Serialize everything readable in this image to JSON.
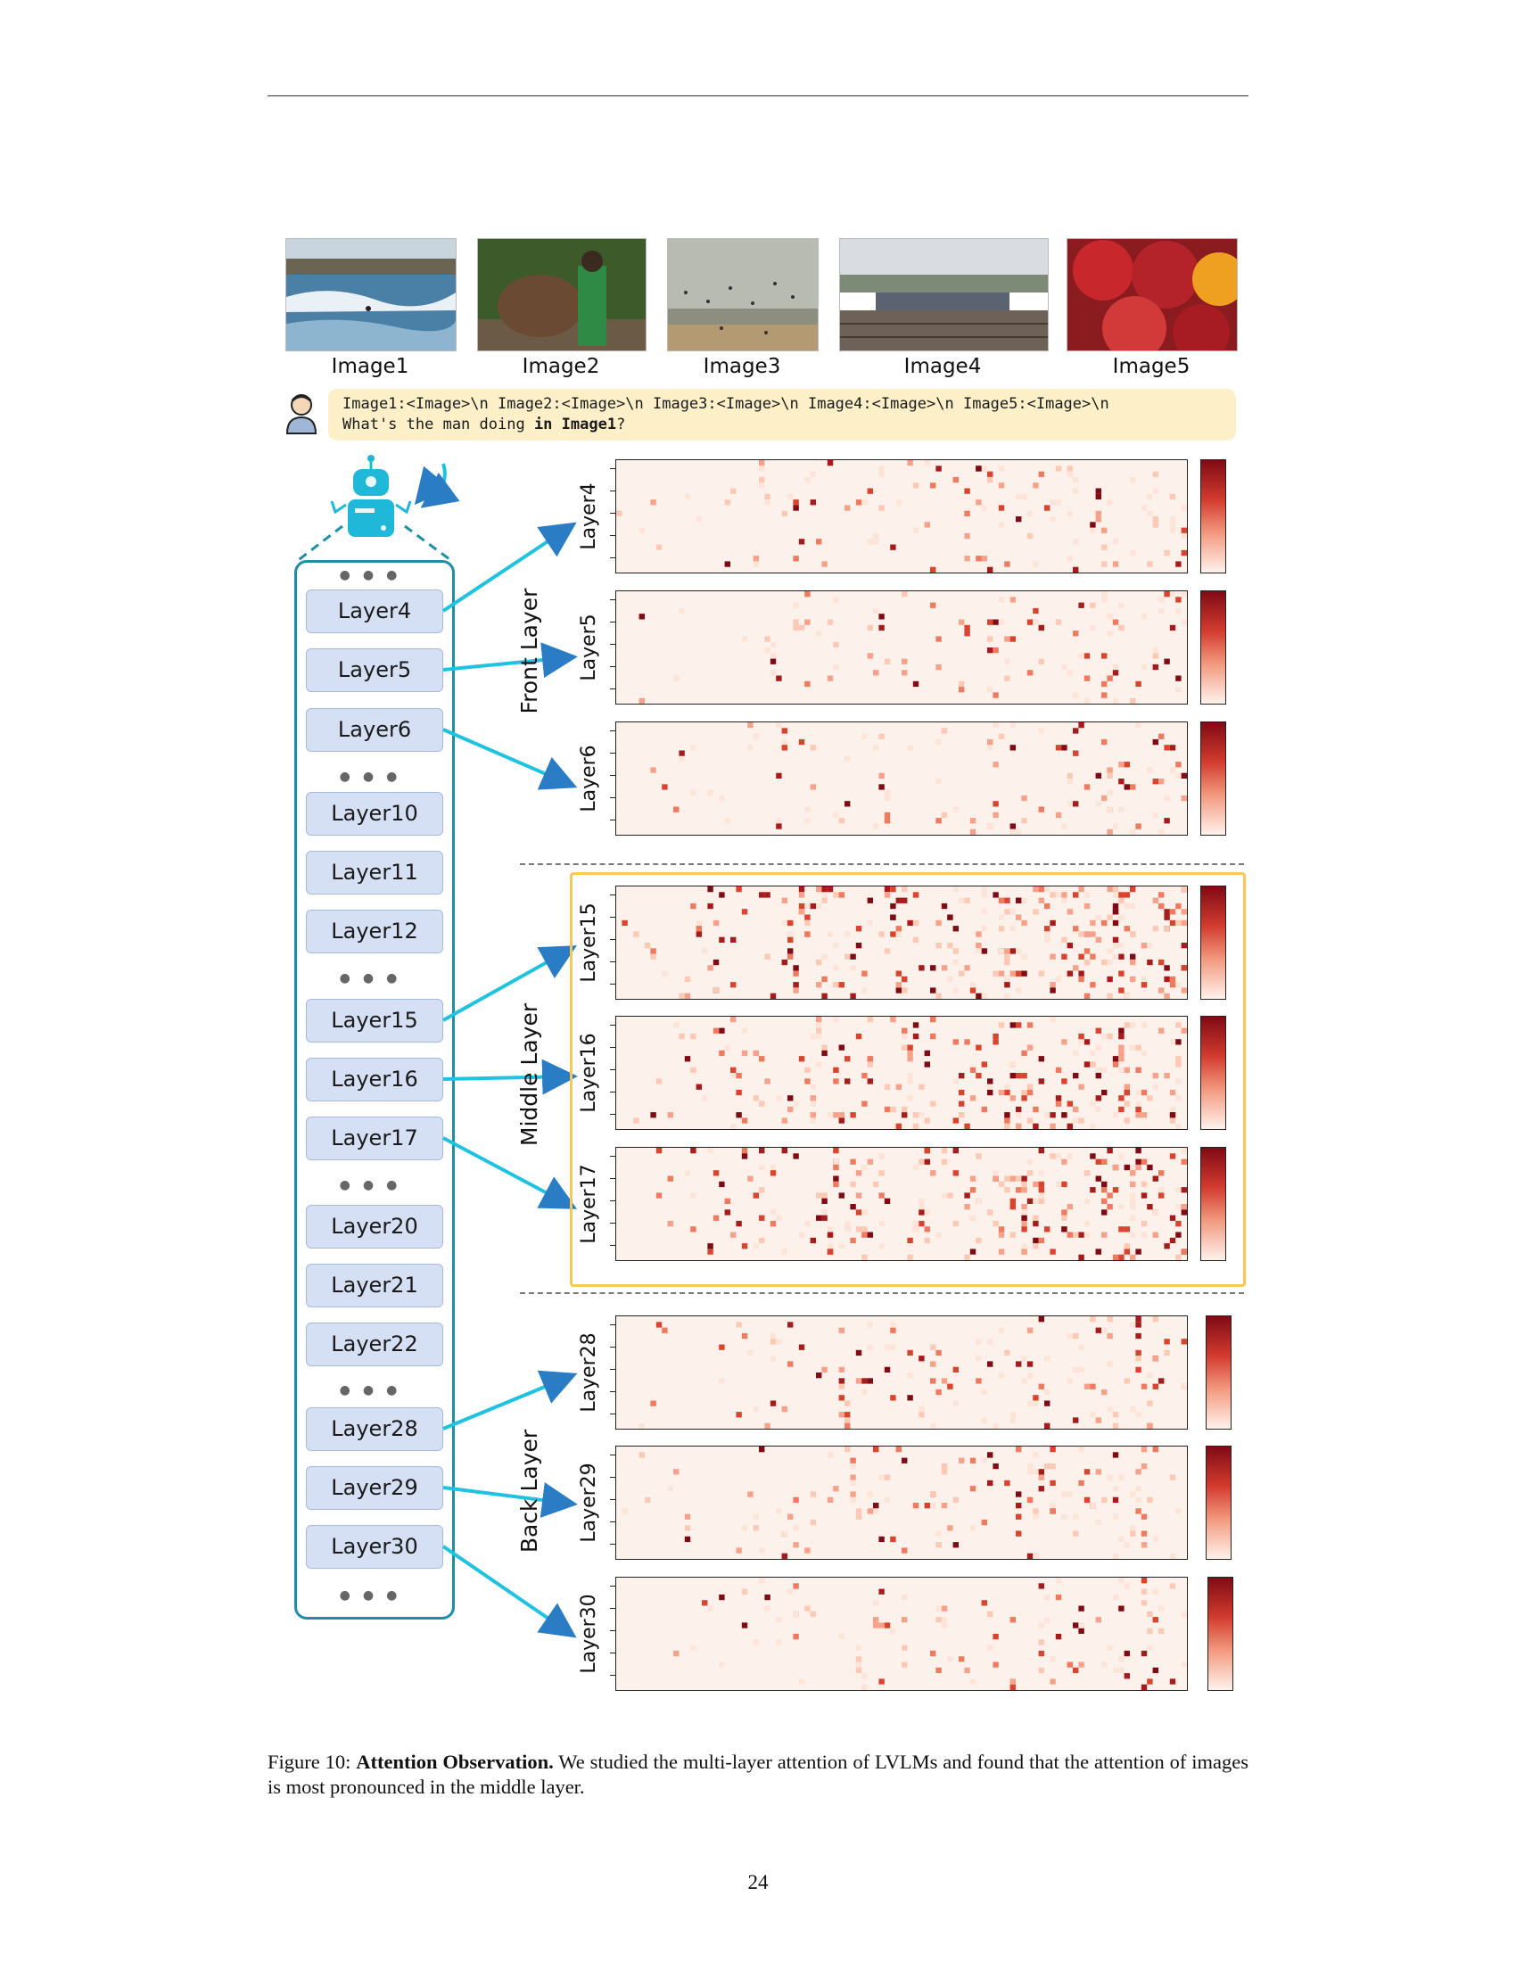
{
  "images": [
    {
      "label": "Image1",
      "scene": "surfing waves"
    },
    {
      "label": "Image2",
      "scene": "man with elephant"
    },
    {
      "label": "Image3",
      "scene": "birds over beach"
    },
    {
      "label": "Image4",
      "scene": "railway trains"
    },
    {
      "label": "Image5",
      "scene": "apples and oranges"
    }
  ],
  "prompt": {
    "line1": "Image1:<Image>\\n Image2:<Image>\\n Image3:<Image>\\n Image4:<Image>\\n Image5:<Image>\\n",
    "line2_prefix": "What's the man doing ",
    "line2_bold": "in Image1",
    "line2_suffix": "?"
  },
  "model_layers": [
    "Layer4",
    "Layer5",
    "Layer6",
    "Layer10",
    "Layer11",
    "Layer12",
    "Layer15",
    "Layer16",
    "Layer17",
    "Layer20",
    "Layer21",
    "Layer22",
    "Layer28",
    "Layer29",
    "Layer30"
  ],
  "groups": {
    "front": "Front Layer",
    "middle": "Middle Layer",
    "back": "Back Layer"
  },
  "heatmaps": [
    {
      "layer": "Layer4",
      "group": "front",
      "intensity": 0.25
    },
    {
      "layer": "Layer5",
      "group": "front",
      "intensity": 0.22
    },
    {
      "layer": "Layer6",
      "group": "front",
      "intensity": 0.22
    },
    {
      "layer": "Layer15",
      "group": "middle",
      "intensity": 0.9
    },
    {
      "layer": "Layer16",
      "group": "middle",
      "intensity": 0.7
    },
    {
      "layer": "Layer17",
      "group": "middle",
      "intensity": 0.8
    },
    {
      "layer": "Layer28",
      "group": "back",
      "intensity": 0.3
    },
    {
      "layer": "Layer29",
      "group": "back",
      "intensity": 0.32
    },
    {
      "layer": "Layer30",
      "group": "back",
      "intensity": 0.2
    }
  ],
  "colors": {
    "highlight": "#f6c855",
    "frame": "#1f8fa8",
    "arrow": "#1fb8d8",
    "heat_max": "#7f0b14",
    "heat_min": "#fdf1ec"
  },
  "caption": {
    "figure": "Figure 10: ",
    "title": "Attention Observation.",
    "text": " We studied the multi-layer attention of LVLMs and found that the attention of images is most pronounced in the middle layer."
  },
  "page_number": "24"
}
